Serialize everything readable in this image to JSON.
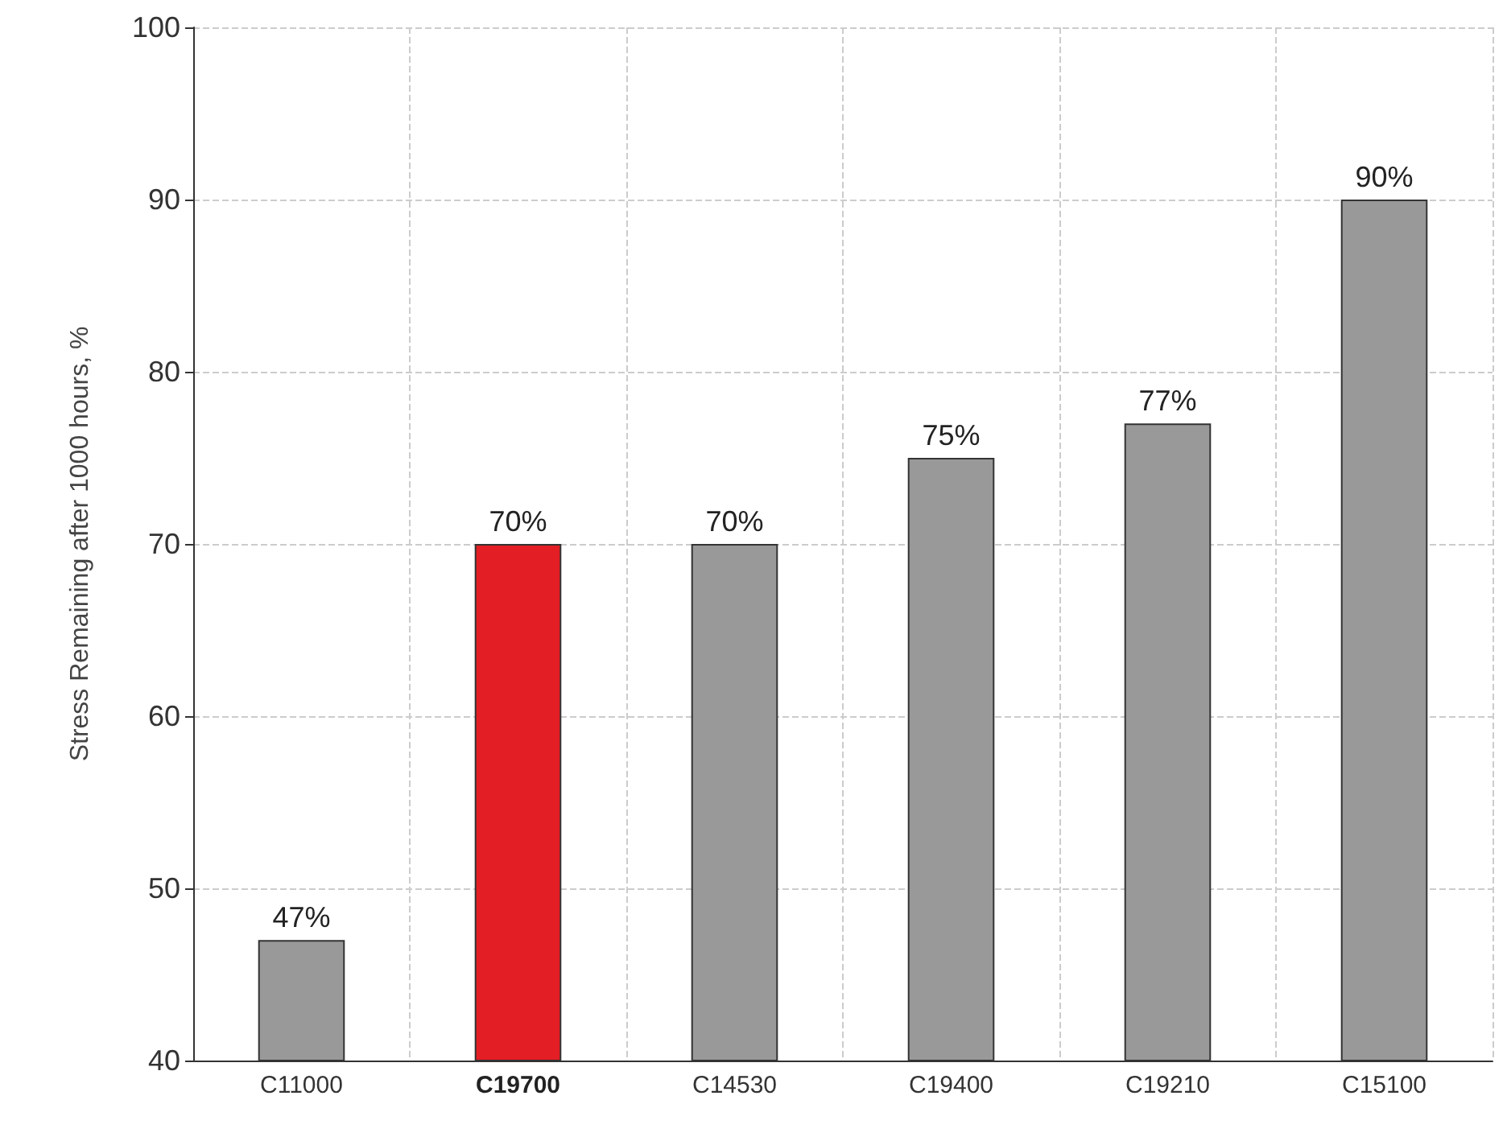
{
  "chart_data": {
    "type": "bar",
    "ylabel": "Stress Remaining after 1000 hours, %",
    "categories": [
      "C11000",
      "C19700",
      "C14530",
      "C19400",
      "C19210",
      "C15100"
    ],
    "values": [
      47,
      70,
      70,
      75,
      77,
      90
    ],
    "value_labels": [
      "47%",
      "70%",
      "70%",
      "75%",
      "77%",
      "90%"
    ],
    "colors": [
      "#999999",
      "#e31e24",
      "#999999",
      "#999999",
      "#999999",
      "#999999"
    ],
    "ylim": [
      40,
      100
    ],
    "yticks": [
      40,
      50,
      60,
      70,
      80,
      90,
      100
    ],
    "grid": true
  }
}
